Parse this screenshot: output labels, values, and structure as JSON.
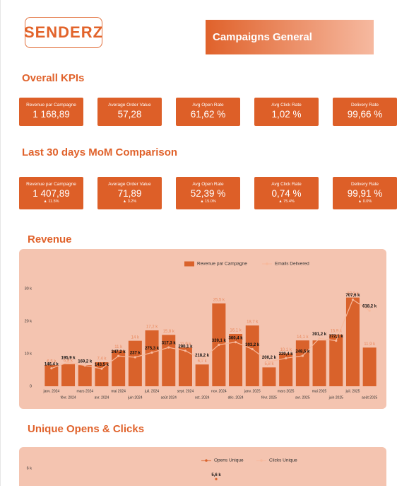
{
  "header": {
    "logo": "SENDERZ",
    "title": "Campaigns General"
  },
  "kpi_sections": [
    {
      "title": "Overall KPIs",
      "cards": [
        {
          "label": "Revenue par Campagne",
          "value": "1 168,89"
        },
        {
          "label": "Average Order Value",
          "value": "57,28"
        },
        {
          "label": "Avg Open Rate",
          "value": "61,62 %"
        },
        {
          "label": "Avg Click Rate",
          "value": "1,02 %"
        },
        {
          "label": "Delivery Rate",
          "value": "99,66 %"
        }
      ]
    },
    {
      "title": "Last 30 days MoM Comparison",
      "cards": [
        {
          "label": "Revenue par Campagne",
          "value": "1 407,89",
          "change": "▲ 11.5%"
        },
        {
          "label": "Average Order Value",
          "value": "71,89",
          "change": "▲ 3.2%"
        },
        {
          "label": "Avg Open Rate",
          "value": "52,39 %",
          "change": "▲ 15.0%"
        },
        {
          "label": "Avg Click Rate",
          "value": "0,74 %",
          "change": "▲ 75.4%"
        },
        {
          "label": "Delivery Rate",
          "value": "99,91 %",
          "change": "▲ 0.0%"
        }
      ]
    }
  ],
  "chart_data": [
    {
      "type": "bar",
      "title": "Revenue",
      "categories": [
        "janv. 2024",
        "févr. 2024",
        "mars 2024",
        "avr. 2024",
        "mai 2024",
        "juin 2024",
        "juil. 2024",
        "août 2024",
        "sept. 2024",
        "oct. 2024",
        "nov. 2024",
        "déc. 2024",
        "janv. 2025",
        "févr. 2025",
        "mars 2025",
        "avr. 2025",
        "mai 2025",
        "juin 2025",
        "juil. 2025",
        "août 2025"
      ],
      "series": [
        {
          "name": "Revenue par Campagne",
          "type": "bar",
          "color": "#d9622b",
          "values": [
            6500,
            6800,
            6500,
            7400,
            11000,
            14000,
            17200,
            15800,
            11900,
            6700,
            25500,
            16100,
            18700,
            5800,
            10100,
            14100,
            14100,
            15900,
            27300,
            11900
          ],
          "value_labels": [
            "6,5 k",
            "6,8 k",
            null,
            "7,4 k",
            "11 k",
            "14 k",
            "17,2 k",
            "15,8 k",
            "11,9 k",
            "6,7 k",
            "25,5 k",
            "16,1 k",
            "18,7 k",
            "5,8 k",
            "10,1 k",
            "14,1 k",
            null,
            "15,9 k",
            "27,3 k",
            "11,9 k"
          ]
        },
        {
          "name": "Emails Delivered",
          "type": "line",
          "axis": "y2",
          "color": "#f7b99c",
          "values": [
            146400,
            195900,
            169200,
            143500,
            247200,
            237000,
            275300,
            317300,
            290100,
            218200,
            339100,
            360400,
            303200,
            200200,
            229400,
            248500,
            391200,
            372100,
            707600,
            618200
          ],
          "value_labels": [
            "146,4 k",
            "195,9 k",
            "169,2 k",
            "143,5 k",
            "247,2 k",
            "237 k",
            "275,3 k",
            "317,3 k",
            "290,1 k",
            "218,2 k",
            "339,1 k",
            "360,4 k",
            "303,2 k",
            "200,2 k",
            "229,4 k",
            "248,5 k",
            "391,2 k",
            "372,1 k",
            "707,6 k",
            "618,2 k"
          ]
        }
      ],
      "ylim": [
        0,
        32000
      ],
      "yticks": [
        0,
        {
          "value": 10000,
          "label": "10 k"
        },
        {
          "value": 20000,
          "label": "20 k"
        },
        {
          "value": 30000,
          "label": "30 k"
        }
      ],
      "y2lim": [
        0,
        850000
      ],
      "legend": "top"
    },
    {
      "type": "line",
      "title": "Unique Opens & Clicks",
      "categories": [
        null
      ],
      "series": [
        {
          "name": "Opens Unique",
          "type": "line",
          "color": "#d9622b",
          "values": [
            5600
          ],
          "value_labels": [
            "5,6 k"
          ]
        },
        {
          "name": "Clicks Unique",
          "type": "line",
          "color": "#f7b99c",
          "values": [
            null
          ]
        }
      ],
      "ylim": [
        0,
        6000
      ],
      "yticks": [
        {
          "value": 6000,
          "label": "6 k"
        }
      ],
      "legend": "top"
    }
  ]
}
